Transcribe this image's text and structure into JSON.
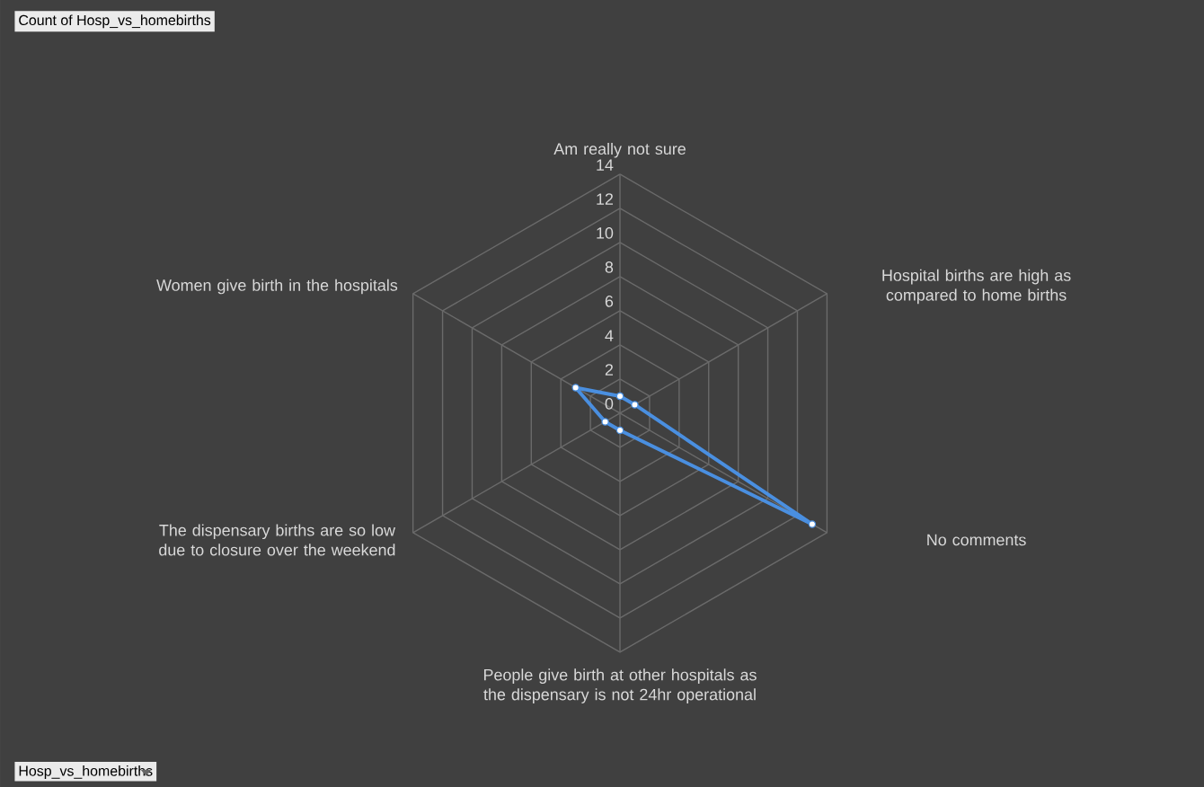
{
  "chart_data": {
    "type": "radar",
    "title": "Count of Hosp_vs_homebirths",
    "categories": [
      "Am really not sure",
      "Hospital births are high as compared to home births",
      "No comments",
      "People give birth at other hospitals as the dispensary is not 24hr operational",
      "The dispensary births are so low due to closure over the weekend",
      "Women give birth in the hospitals"
    ],
    "series": [
      {
        "color": "#4a8fe0",
        "values": [
          1,
          1,
          13,
          1,
          1,
          3
        ]
      }
    ],
    "ylim": [
      0,
      14
    ],
    "yticks": [
      0,
      2,
      4,
      6,
      8,
      10,
      12,
      14
    ],
    "grid": true,
    "marker": "circle",
    "annotations": [
      "Hosp_vs_homebirths"
    ]
  }
}
